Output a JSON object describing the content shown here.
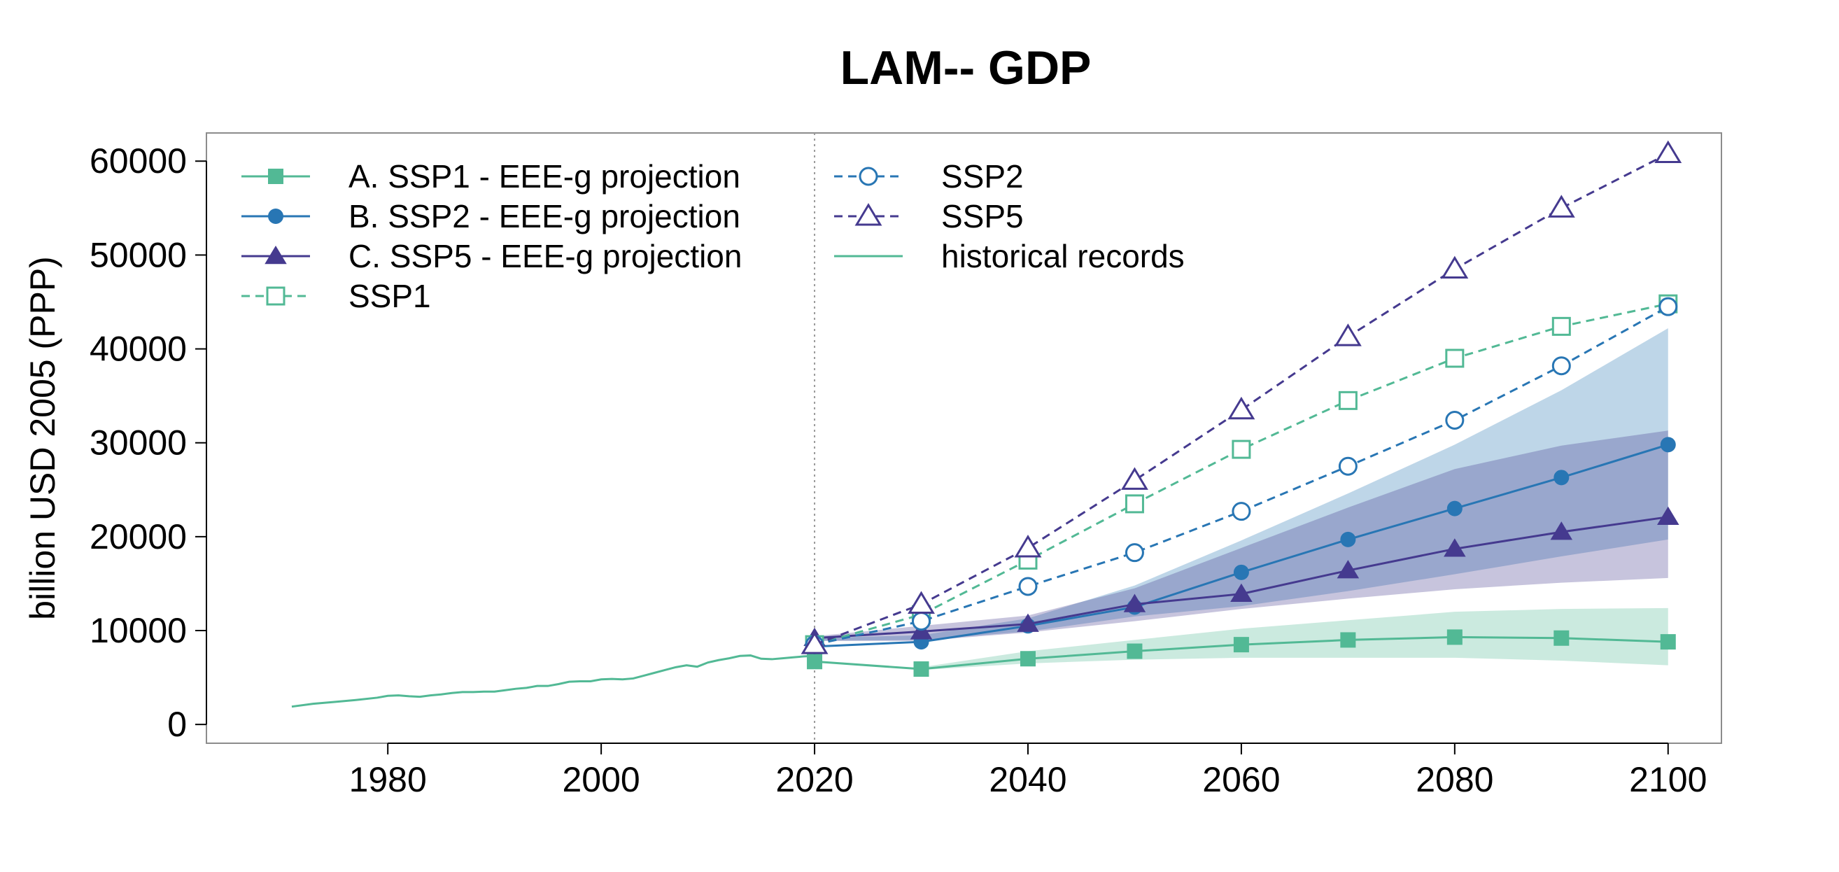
{
  "chart_data": {
    "type": "line",
    "title": "LAM-- GDP",
    "xlabel": "",
    "ylabel": "billion USD 2005 (PPP)",
    "xlim": [
      1963,
      2105
    ],
    "ylim": [
      0,
      63000
    ],
    "xticks": [
      1980,
      2000,
      2020,
      2040,
      2060,
      2080,
      2100
    ],
    "yticks": [
      0,
      10000,
      20000,
      30000,
      40000,
      50000,
      60000
    ],
    "vline_x": 2020,
    "grid": false,
    "legend_position": "top-left",
    "colors": {
      "ssp1": "#52b995",
      "ssp2": "#2876b4",
      "ssp5": "#453a8f",
      "band_ssp1": "#52b995",
      "band_ssp2": "#2876b4",
      "band_ssp5": "#453a8f"
    },
    "historical": {
      "name": "historical records",
      "x": [
        1971,
        1973,
        1975,
        1977,
        1979,
        1980,
        1981,
        1982,
        1983,
        1984,
        1985,
        1986,
        1987,
        1988,
        1989,
        1990,
        1991,
        1992,
        1993,
        1994,
        1995,
        1996,
        1997,
        1998,
        1999,
        2000,
        2001,
        2002,
        2003,
        2004,
        2005,
        2006,
        2007,
        2008,
        2009,
        2010,
        2011,
        2012,
        2013,
        2014,
        2015,
        2016,
        2017,
        2018,
        2019,
        2020
      ],
      "y": [
        1900,
        2200,
        2400,
        2600,
        2850,
        3050,
        3100,
        3000,
        2950,
        3100,
        3200,
        3350,
        3450,
        3450,
        3500,
        3500,
        3650,
        3800,
        3900,
        4100,
        4100,
        4300,
        4550,
        4600,
        4600,
        4800,
        4850,
        4800,
        4900,
        5200,
        5500,
        5800,
        6100,
        6300,
        6150,
        6600,
        6850,
        7050,
        7300,
        7350,
        7000,
        6950,
        7050,
        7150,
        7250,
        7300
      ]
    },
    "projection_x": [
      2020,
      2030,
      2040,
      2050,
      2060,
      2070,
      2080,
      2090,
      2100
    ],
    "series": [
      {
        "name": "A. SSP1 - EEE-g projection",
        "key": "ssp1",
        "style": "solid-filled-square",
        "values": [
          6700,
          5900,
          7000,
          7800,
          8500,
          9000,
          9300,
          9200,
          8800
        ]
      },
      {
        "name": "B. SSP2 - EEE-g projection",
        "key": "ssp2",
        "style": "solid-filled-circle",
        "values": [
          8300,
          8800,
          10500,
          12500,
          16200,
          19700,
          23000,
          26300,
          29800
        ]
      },
      {
        "name": "C. SSP5 - EEE-g projection",
        "key": "ssp5",
        "style": "solid-filled-triangle",
        "values": [
          9200,
          9900,
          10700,
          12800,
          13900,
          16400,
          18700,
          20500,
          22100
        ]
      },
      {
        "name": "SSP1",
        "key": "ssp1",
        "style": "dashed-open-square",
        "values": [
          8500,
          11700,
          17500,
          23500,
          29300,
          34500,
          39000,
          42400,
          44800
        ]
      },
      {
        "name": "SSP2",
        "key": "ssp2",
        "style": "dashed-open-circle",
        "values": [
          8500,
          11000,
          14700,
          18300,
          22700,
          27500,
          32400,
          38200,
          44500
        ]
      },
      {
        "name": "SSP5",
        "key": "ssp5",
        "style": "dashed-open-triangle",
        "values": [
          8500,
          12800,
          18800,
          26000,
          33500,
          41300,
          48500,
          55000,
          60800
        ]
      }
    ],
    "bands": [
      {
        "key": "ssp1",
        "opacity": 0.3,
        "x": [
          2030,
          2040,
          2050,
          2060,
          2070,
          2080,
          2090,
          2100
        ],
        "lower": [
          5800,
          6500,
          6900,
          7100,
          7100,
          7100,
          6800,
          6300
        ],
        "upper": [
          6100,
          7800,
          9000,
          10200,
          11100,
          12000,
          12300,
          12400
        ]
      },
      {
        "key": "ssp2",
        "opacity": 0.3,
        "x": [
          2020,
          2030,
          2040,
          2050,
          2060,
          2070,
          2080,
          2090,
          2100
        ],
        "lower": [
          8900,
          9000,
          9900,
          11500,
          12600,
          14200,
          16000,
          17900,
          19700
        ],
        "upper": [
          9200,
          9500,
          11300,
          14800,
          19600,
          24600,
          29800,
          35600,
          42200
        ]
      },
      {
        "key": "ssp5",
        "opacity": 0.3,
        "x": [
          2020,
          2030,
          2040,
          2050,
          2060,
          2070,
          2080,
          2090,
          2100
        ],
        "lower": [
          8900,
          8900,
          9800,
          11000,
          12300,
          13400,
          14400,
          15100,
          15600
        ],
        "upper": [
          9400,
          10500,
          11600,
          14500,
          18800,
          23100,
          27200,
          29700,
          31300
        ]
      }
    ],
    "legend": [
      {
        "label": "A. SSP1 - EEE-g projection",
        "key": "ssp1",
        "style": "solid-filled-square",
        "col": 0,
        "row": 0
      },
      {
        "label": "B. SSP2 - EEE-g projection",
        "key": "ssp2",
        "style": "solid-filled-circle",
        "col": 0,
        "row": 1
      },
      {
        "label": "C. SSP5 - EEE-g projection",
        "key": "ssp5",
        "style": "solid-filled-triangle",
        "col": 0,
        "row": 2
      },
      {
        "label": "SSP1",
        "key": "ssp1",
        "style": "dashed-open-square",
        "col": 0,
        "row": 3
      },
      {
        "label": "SSP2",
        "key": "ssp2",
        "style": "dashed-open-circle",
        "col": 1,
        "row": 0
      },
      {
        "label": "SSP5",
        "key": "ssp5",
        "style": "dashed-open-triangle",
        "col": 1,
        "row": 1
      },
      {
        "label": "historical records",
        "key": "ssp1",
        "style": "solid-line",
        "col": 1,
        "row": 2
      }
    ]
  }
}
